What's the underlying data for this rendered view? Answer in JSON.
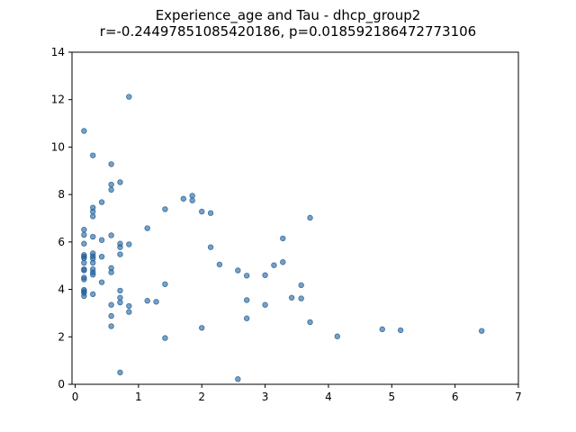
{
  "chart_data": {
    "type": "scatter",
    "title": "Experience_age and Tau - dhcp_group2",
    "subtitle": "r=-0.24497851085420186, p=0.018592186472773106",
    "xlabel": "",
    "ylabel": "",
    "xlim": [
      -0.05,
      7
    ],
    "ylim": [
      0,
      14
    ],
    "xticks": [
      0,
      1,
      2,
      3,
      4,
      5,
      6,
      7
    ],
    "yticks": [
      0,
      2,
      4,
      6,
      8,
      10,
      12,
      14
    ],
    "grid": false,
    "marker_color": "#1f5f99",
    "points": [
      [
        0.14,
        10.68
      ],
      [
        0.14,
        6.52
      ],
      [
        0.14,
        6.3
      ],
      [
        0.14,
        5.93
      ],
      [
        0.14,
        5.45
      ],
      [
        0.14,
        5.38
      ],
      [
        0.14,
        5.32
      ],
      [
        0.14,
        5.12
      ],
      [
        0.14,
        4.85
      ],
      [
        0.14,
        4.8
      ],
      [
        0.14,
        4.5
      ],
      [
        0.14,
        4.42
      ],
      [
        0.14,
        3.98
      ],
      [
        0.14,
        3.92
      ],
      [
        0.14,
        3.85
      ],
      [
        0.14,
        3.72
      ],
      [
        0.28,
        9.65
      ],
      [
        0.28,
        7.45
      ],
      [
        0.28,
        7.28
      ],
      [
        0.28,
        7.08
      ],
      [
        0.28,
        6.22
      ],
      [
        0.28,
        5.52
      ],
      [
        0.28,
        5.4
      ],
      [
        0.28,
        5.3
      ],
      [
        0.28,
        5.12
      ],
      [
        0.28,
        4.85
      ],
      [
        0.28,
        4.72
      ],
      [
        0.28,
        4.62
      ],
      [
        0.28,
        3.8
      ],
      [
        0.42,
        7.68
      ],
      [
        0.42,
        6.08
      ],
      [
        0.42,
        5.38
      ],
      [
        0.42,
        4.3
      ],
      [
        0.57,
        9.28
      ],
      [
        0.57,
        8.42
      ],
      [
        0.57,
        8.2
      ],
      [
        0.57,
        6.28
      ],
      [
        0.57,
        4.9
      ],
      [
        0.57,
        4.72
      ],
      [
        0.57,
        3.35
      ],
      [
        0.57,
        2.88
      ],
      [
        0.57,
        2.45
      ],
      [
        0.71,
        8.52
      ],
      [
        0.71,
        5.93
      ],
      [
        0.71,
        5.78
      ],
      [
        0.71,
        5.48
      ],
      [
        0.71,
        3.95
      ],
      [
        0.71,
        3.65
      ],
      [
        0.71,
        3.45
      ],
      [
        0.71,
        0.5
      ],
      [
        0.85,
        12.12
      ],
      [
        0.85,
        5.9
      ],
      [
        0.85,
        3.3
      ],
      [
        0.85,
        3.05
      ],
      [
        1.14,
        6.58
      ],
      [
        1.14,
        3.52
      ],
      [
        1.28,
        3.48
      ],
      [
        1.42,
        7.38
      ],
      [
        1.42,
        4.22
      ],
      [
        1.42,
        1.95
      ],
      [
        1.71,
        7.82
      ],
      [
        1.85,
        7.95
      ],
      [
        1.85,
        7.75
      ],
      [
        2.0,
        7.28
      ],
      [
        2.0,
        2.38
      ],
      [
        2.14,
        7.22
      ],
      [
        2.14,
        5.78
      ],
      [
        2.28,
        5.05
      ],
      [
        2.57,
        4.8
      ],
      [
        2.57,
        0.22
      ],
      [
        2.71,
        4.58
      ],
      [
        2.71,
        3.55
      ],
      [
        2.71,
        2.78
      ],
      [
        3.0,
        4.6
      ],
      [
        3.0,
        3.35
      ],
      [
        3.14,
        5.02
      ],
      [
        3.28,
        6.15
      ],
      [
        3.28,
        5.15
      ],
      [
        3.42,
        3.65
      ],
      [
        3.57,
        4.18
      ],
      [
        3.57,
        3.62
      ],
      [
        3.71,
        7.02
      ],
      [
        3.71,
        2.62
      ],
      [
        4.14,
        2.02
      ],
      [
        4.85,
        2.32
      ],
      [
        5.14,
        2.28
      ],
      [
        6.42,
        2.25
      ]
    ]
  }
}
